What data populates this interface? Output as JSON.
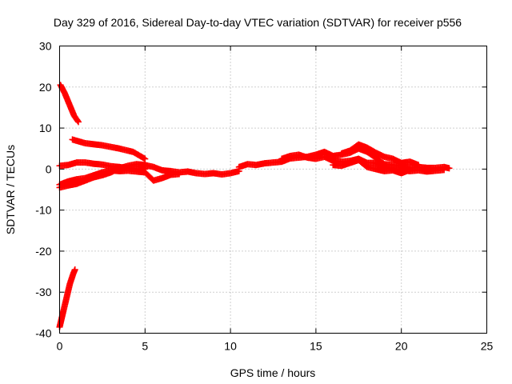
{
  "chart_data": {
    "type": "scatter",
    "title": "Day 329 of 2016, Sidereal Day-to-day VTEC variation (SDTVAR) for receiver p556",
    "xlabel": "GPS time / hours",
    "ylabel": "SDTVAR / TECUs",
    "xlim": [
      0,
      25
    ],
    "ylim": [
      -40,
      30
    ],
    "xticks": [
      0,
      5,
      10,
      15,
      20,
      25
    ],
    "yticks": [
      -40,
      -30,
      -20,
      -10,
      0,
      10,
      20,
      30
    ],
    "grid": true,
    "marker": "plus",
    "color": "#ff0000",
    "series": [
      {
        "segments": [
          [
            [
              0.05,
              20.5
            ],
            [
              0.3,
              18.5
            ],
            [
              0.6,
              15.5
            ],
            [
              0.85,
              13
            ],
            [
              1.1,
              11.5
            ]
          ],
          [
            [
              0.75,
              7.2
            ],
            [
              1.5,
              6.3
            ],
            [
              2.5,
              5.8
            ],
            [
              3.5,
              5.0
            ],
            [
              4.3,
              4.2
            ],
            [
              5.0,
              2.5
            ]
          ],
          [
            [
              0.0,
              0.8
            ],
            [
              0.5,
              1.0
            ],
            [
              1.0,
              1.6
            ],
            [
              1.5,
              1.6
            ],
            [
              2.0,
              1.3
            ],
            [
              2.5,
              1.1
            ],
            [
              3.0,
              0.7
            ],
            [
              3.5,
              0.5
            ],
            [
              4.0,
              0.2
            ],
            [
              4.5,
              0.0
            ],
            [
              5.0,
              0.0
            ]
          ],
          [
            [
              0.0,
              -4.5
            ],
            [
              0.5,
              -4.0
            ],
            [
              1.0,
              -3.6
            ],
            [
              1.5,
              -2.8
            ],
            [
              2.0,
              -2.0
            ],
            [
              2.5,
              -1.5
            ],
            [
              3.0,
              -0.8
            ],
            [
              3.5,
              0.2
            ],
            [
              4.0,
              0.8
            ],
            [
              4.5,
              1.2
            ],
            [
              5.0,
              1.0
            ],
            [
              5.5,
              0.5
            ],
            [
              6.0,
              -0.3
            ],
            [
              6.5,
              -0.5
            ],
            [
              7.0,
              -0.8
            ],
            [
              7.5,
              -0.6
            ],
            [
              8.0,
              -1.0
            ],
            [
              8.5,
              -1.2
            ],
            [
              9.0,
              -1.0
            ],
            [
              9.5,
              -1.3
            ],
            [
              10.0,
              -1.0
            ],
            [
              10.5,
              -0.5
            ]
          ],
          [
            [
              0.0,
              -3.8
            ],
            [
              0.5,
              -3.0
            ],
            [
              1.0,
              -2.5
            ],
            [
              1.5,
              -2.2
            ],
            [
              2.0,
              -1.5
            ],
            [
              2.5,
              -0.8
            ],
            [
              3.0,
              -0.3
            ],
            [
              3.5,
              -0.5
            ],
            [
              4.0,
              -0.4
            ],
            [
              4.5,
              -0.6
            ],
            [
              5.0,
              -0.8
            ],
            [
              5.5,
              -2.8
            ],
            [
              6.0,
              -2.2
            ],
            [
              6.5,
              -1.4
            ],
            [
              7.0,
              -1.2
            ]
          ],
          [
            [
              0.0,
              -38.5
            ],
            [
              0.2,
              -35
            ],
            [
              0.4,
              -31.5
            ],
            [
              0.6,
              -28
            ],
            [
              0.8,
              -25.5
            ],
            [
              0.9,
              -24.5
            ]
          ],
          [
            [
              10.5,
              0.5
            ],
            [
              11.0,
              1.2
            ],
            [
              11.5,
              1.0
            ],
            [
              12.0,
              1.4
            ],
            [
              12.5,
              1.6
            ],
            [
              13.0,
              1.8
            ],
            [
              13.5,
              2.6
            ],
            [
              14.0,
              2.8
            ],
            [
              14.5,
              3.0
            ],
            [
              15.0,
              3.5
            ],
            [
              15.5,
              4.2
            ],
            [
              16.0,
              3.2
            ],
            [
              16.5,
              3.5
            ],
            [
              17.0,
              4.0
            ],
            [
              17.5,
              5.0
            ],
            [
              18.0,
              4.2
            ],
            [
              18.5,
              2.8
            ],
            [
              19.0,
              1.2
            ],
            [
              19.5,
              1.0
            ],
            [
              20.0,
              0.8
            ],
            [
              20.5,
              0.3
            ],
            [
              21.0,
              0.5
            ],
            [
              21.5,
              0.3
            ],
            [
              22.0,
              0.3
            ],
            [
              22.5,
              0.5
            ],
            [
              22.8,
              0.2
            ]
          ],
          [
            [
              13.0,
              2.5
            ],
            [
              13.5,
              3.2
            ],
            [
              14.0,
              3.5
            ],
            [
              14.5,
              2.8
            ],
            [
              15.0,
              2.5
            ],
            [
              15.5,
              3.0
            ],
            [
              16.0,
              2.0
            ],
            [
              16.5,
              1.8
            ],
            [
              17.0,
              2.0
            ],
            [
              17.5,
              2.5
            ],
            [
              18.0,
              1.5
            ],
            [
              18.5,
              1.5
            ],
            [
              19.0,
              0.5
            ],
            [
              19.5,
              0.0
            ],
            [
              20.0,
              -0.2
            ],
            [
              20.5,
              -0.5
            ],
            [
              21.0,
              -0.3
            ],
            [
              21.5,
              -0.6
            ],
            [
              22.0,
              -0.4
            ],
            [
              22.5,
              -0.2
            ]
          ],
          [
            [
              16.5,
              3.8
            ],
            [
              17.0,
              4.5
            ],
            [
              17.5,
              6.0
            ],
            [
              18.0,
              5.2
            ],
            [
              18.5,
              4.0
            ],
            [
              19.0,
              3.0
            ],
            [
              19.5,
              2.5
            ],
            [
              20.0,
              1.5
            ],
            [
              20.5,
              1.8
            ],
            [
              21.0,
              1.0
            ]
          ],
          [
            [
              16.0,
              1.0
            ],
            [
              16.5,
              0.8
            ],
            [
              17.0,
              1.5
            ],
            [
              17.5,
              2.2
            ],
            [
              18.0,
              0.5
            ],
            [
              18.5,
              0.0
            ],
            [
              19.0,
              -0.5
            ],
            [
              19.5,
              -0.3
            ],
            [
              20.0,
              -1.0
            ],
            [
              20.5,
              -0.2
            ]
          ]
        ]
      }
    ]
  }
}
